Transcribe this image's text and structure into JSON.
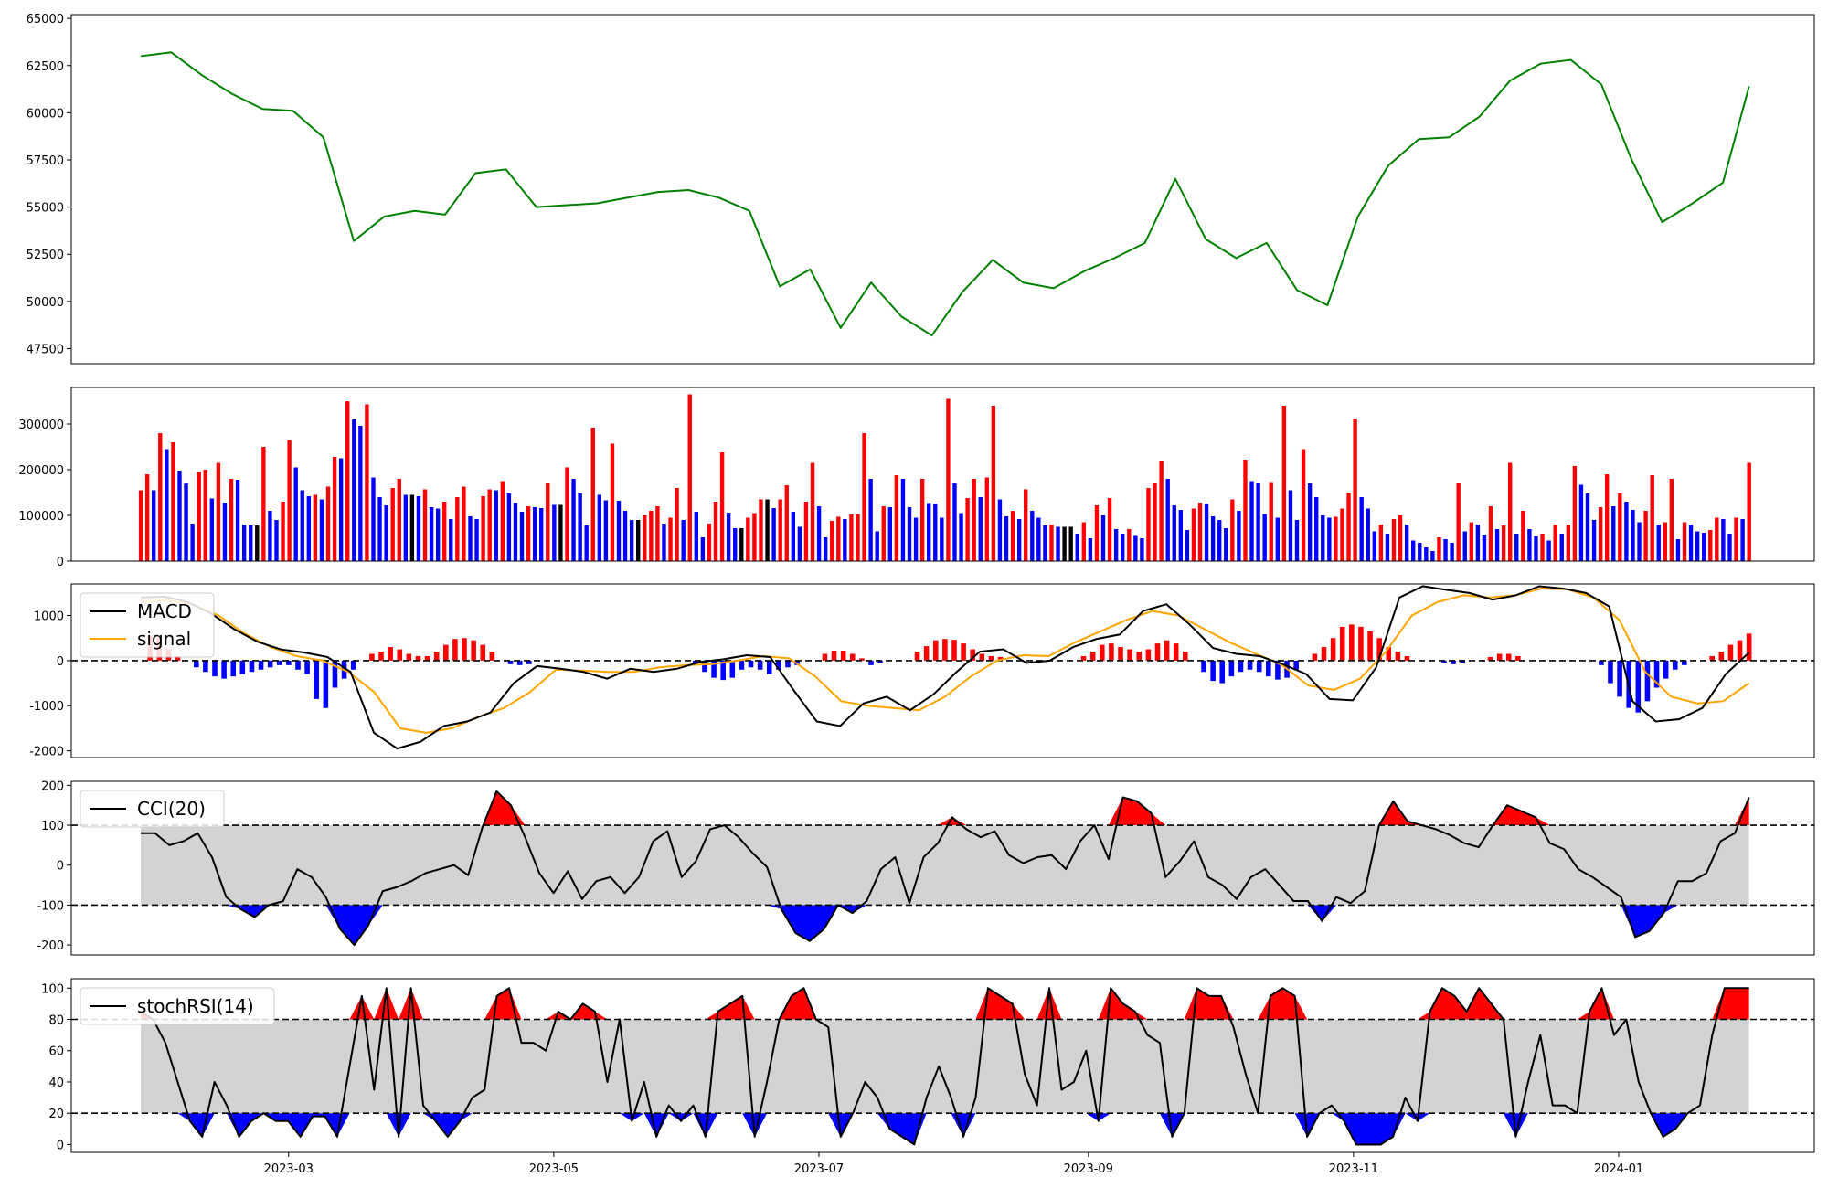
{
  "chart_data": [
    {
      "type": "line",
      "panel": "price",
      "x": [
        "2023-01-26",
        "2023-02-02",
        "2023-02-09",
        "2023-02-16",
        "2023-02-23",
        "2023-03-02",
        "2023-03-09",
        "2023-03-16",
        "2023-03-23",
        "2023-03-30",
        "2023-04-06",
        "2023-04-13",
        "2023-04-20",
        "2023-04-27",
        "2023-05-04",
        "2023-05-11",
        "2023-05-18",
        "2023-05-25",
        "2023-06-01",
        "2023-06-08",
        "2023-06-15",
        "2023-06-22",
        "2023-06-29",
        "2023-07-06",
        "2023-07-13",
        "2023-07-20",
        "2023-07-27",
        "2023-08-03",
        "2023-08-10",
        "2023-08-17",
        "2023-08-24",
        "2023-08-31",
        "2023-09-07",
        "2023-09-14",
        "2023-09-21",
        "2023-09-28",
        "2023-10-05",
        "2023-10-12",
        "2023-10-19",
        "2023-10-26",
        "2023-11-02",
        "2023-11-09",
        "2023-11-16",
        "2023-11-23",
        "2023-11-30",
        "2023-12-07",
        "2023-12-14",
        "2023-12-21",
        "2023-12-28",
        "2024-01-04",
        "2024-01-11",
        "2024-01-18",
        "2024-01-25",
        "2024-01-31"
      ],
      "series": [
        {
          "values": [
            63000,
            63200,
            62000,
            61000,
            60200,
            60100,
            58700,
            53200,
            54500,
            54800,
            54600,
            56800,
            57000,
            55000,
            55100,
            55200,
            55500,
            55800,
            55900,
            55500,
            54800,
            50800,
            51700,
            48600,
            51000,
            49200,
            48200,
            50500,
            52200,
            51000,
            50700,
            51600,
            52300,
            53100,
            56500,
            53300,
            52300,
            53100,
            50600,
            49800,
            54500,
            57200,
            58600,
            58700,
            59800,
            61700,
            62600,
            62800,
            61500,
            57500,
            54200,
            55200,
            56300,
            61400
          ]
        }
      ],
      "ylim": [
        46700,
        65200
      ],
      "yticks": [
        47500,
        50000,
        52500,
        55000,
        57500,
        60000,
        62500,
        65000
      ],
      "colors": {
        "line": "#008000"
      }
    },
    {
      "type": "bar",
      "panel": "volume",
      "values": [
        155000,
        190000,
        155000,
        280000,
        245000,
        260000,
        198000,
        170000,
        82000,
        195000,
        200000,
        137000,
        215000,
        128000,
        180000,
        178000,
        80000,
        78000,
        78000,
        250000,
        110000,
        90000,
        130000,
        265000,
        205000,
        155000,
        142000,
        145000,
        135000,
        163000,
        228000,
        225000,
        350000,
        310000,
        296000,
        343000,
        183000,
        140000,
        122000,
        160000,
        180000,
        145000,
        145000,
        142000,
        157000,
        118000,
        115000,
        130000,
        92000,
        140000,
        163000,
        98000,
        92000,
        142000,
        157000,
        155000,
        175000,
        148000,
        128000,
        108000,
        120000,
        118000,
        116000,
        172000,
        123000,
        123000,
        205000,
        180000,
        148000,
        78000,
        292000,
        145000,
        133000,
        257000,
        132000,
        110000,
        90000,
        90000,
        100000,
        110000,
        120000,
        82000,
        95000,
        160000,
        90000,
        365000,
        108000,
        52000,
        82000,
        130000,
        238000,
        106000,
        72000,
        72000,
        95000,
        105000,
        135000,
        135000,
        116000,
        135000,
        166000,
        108000,
        75000,
        130000,
        215000,
        120000,
        52000,
        88000,
        97000,
        92000,
        102000,
        103000,
        280000,
        180000,
        65000,
        120000,
        118000,
        188000,
        180000,
        118000,
        95000,
        180000,
        127000,
        125000,
        95000,
        355000,
        170000,
        105000,
        138000,
        180000,
        140000,
        183000,
        340000,
        135000,
        98000,
        110000,
        92000,
        157000,
        110000,
        95000,
        78000,
        80000,
        75000,
        75000,
        75000,
        60000,
        85000,
        50000,
        122000,
        100000,
        138000,
        70000,
        60000,
        70000,
        57000,
        50000,
        160000,
        172000,
        220000,
        180000,
        122000,
        112000,
        68000,
        115000,
        128000,
        125000,
        98000,
        90000,
        72000,
        135000,
        110000,
        222000,
        175000,
        172000,
        103000,
        173000,
        95000,
        340000,
        155000,
        90000,
        245000,
        170000,
        140000,
        100000,
        95000,
        97000,
        115000,
        150000,
        312000,
        140000,
        115000,
        65000,
        80000,
        60000,
        92000,
        100000,
        80000,
        45000,
        40000,
        30000,
        22000,
        52000,
        48000,
        40000,
        172000,
        65000,
        85000,
        80000,
        58000,
        120000,
        70000,
        78000,
        215000,
        60000,
        110000,
        70000,
        55000,
        60000,
        45000,
        80000,
        60000,
        80000,
        208000,
        167000,
        148000,
        90000,
        118000,
        190000,
        120000,
        148000,
        130000,
        112000,
        85000,
        110000,
        188000,
        80000,
        85000,
        180000,
        48000,
        85000,
        80000,
        65000,
        62000,
        68000,
        95000,
        92000,
        60000,
        95000,
        92000,
        215000
      ],
      "ylim": [
        0,
        380000
      ],
      "yticks": [
        0,
        100000,
        200000,
        300000
      ],
      "colors": {
        "up": "#ff0000",
        "down": "#0000ff",
        "flat": "#000000"
      }
    },
    {
      "type": "line",
      "panel": "macd",
      "series": [
        {
          "name": "MACD",
          "values": [
            1400,
            1420,
            1300,
            1050,
            700,
            420,
            250,
            180,
            80,
            -250,
            -1600,
            -1950,
            -1800,
            -1450,
            -1350,
            -1150,
            -500,
            -120,
            -180,
            -250,
            -400,
            -180,
            -250,
            -180,
            -30,
            30,
            120,
            80,
            -650,
            -1350,
            -1450,
            -950,
            -800,
            -1100,
            -750,
            -250,
            200,
            250,
            -50,
            0,
            300,
            480,
            580,
            1100,
            1250,
            800,
            280,
            150,
            100,
            -80,
            -300,
            -850,
            -880,
            -150,
            1400,
            1650,
            1570,
            1500,
            1350,
            1450,
            1650,
            1600,
            1500,
            1200,
            -900,
            -1350,
            -1300,
            -1050,
            -300,
            180
          ]
        },
        {
          "name": "signal",
          "values": [
            1300,
            1340,
            1250,
            1000,
            600,
            300,
            100,
            0,
            -250,
            -700,
            -1500,
            -1600,
            -1500,
            -1250,
            -1050,
            -700,
            -200,
            -220,
            -250,
            -250,
            -150,
            -100,
            -80,
            0,
            100,
            50,
            -350,
            -900,
            -1000,
            -1050,
            -1100,
            -800,
            -350,
            0,
            120,
            100,
            400,
            650,
            900,
            1100,
            1000,
            700,
            400,
            150,
            -100,
            -550,
            -650,
            -400,
            200,
            1000,
            1300,
            1450,
            1400,
            1450,
            1600,
            1580,
            1400,
            900,
            -250,
            -800,
            -950,
            -900,
            -500
          ]
        }
      ],
      "histogram": [
        0,
        550,
        500,
        250,
        100,
        0,
        -150,
        -250,
        -350,
        -400,
        -350,
        -300,
        -250,
        -200,
        -150,
        -100,
        -100,
        -200,
        -300,
        -850,
        -1050,
        -600,
        -400,
        -200,
        0,
        150,
        200,
        300,
        250,
        150,
        100,
        100,
        200,
        350,
        480,
        500,
        450,
        350,
        200,
        0,
        -80,
        -100,
        -80,
        0,
        0,
        0,
        0,
        0,
        0,
        0,
        0,
        0,
        0,
        0,
        0,
        0,
        0,
        0,
        0,
        0,
        -100,
        -250,
        -380,
        -430,
        -380,
        -200,
        -150,
        -200,
        -300,
        -200,
        -150,
        -100,
        0,
        0,
        150,
        220,
        220,
        150,
        50,
        -100,
        -50,
        0,
        0,
        0,
        200,
        320,
        450,
        480,
        460,
        380,
        250,
        150,
        100,
        80,
        0,
        0,
        0,
        0,
        0,
        0,
        0,
        0,
        100,
        200,
        350,
        380,
        300,
        250,
        200,
        250,
        380,
        450,
        380,
        200,
        0,
        -250,
        -450,
        -500,
        -350,
        -250,
        -200,
        -250,
        -350,
        -420,
        -380,
        -200,
        0,
        150,
        300,
        500,
        750,
        800,
        750,
        650,
        500,
        300,
        200,
        100,
        0,
        0,
        0,
        -50,
        -80,
        -50,
        0,
        0,
        80,
        150,
        150,
        100,
        0,
        0,
        0,
        0,
        0,
        0,
        0,
        0,
        -100,
        -500,
        -800,
        -1050,
        -1150,
        -900,
        -600,
        -400,
        -200,
        -100,
        0,
        0,
        100,
        200,
        350,
        450,
        600
      ],
      "hline": 0,
      "ylim": [
        -2150,
        1700
      ],
      "yticks": [
        -2000,
        -1000,
        0,
        1000
      ],
      "legend": "top-left",
      "colors": {
        "MACD": "#000000",
        "signal": "#ffa500",
        "hist_pos": "#ff0000",
        "hist_neg": "#0000ff"
      }
    },
    {
      "type": "area",
      "panel": "cci",
      "series": [
        {
          "name": "CCI(20)",
          "values": [
            80,
            80,
            50,
            60,
            80,
            20,
            -80,
            -110,
            -130,
            -100,
            -90,
            -10,
            -30,
            -80,
            -160,
            -200,
            -150,
            -65,
            -55,
            -40,
            -20,
            -10,
            0,
            -25,
            95,
            185,
            150,
            70,
            -20,
            -70,
            -15,
            -85,
            -40,
            -30,
            -70,
            -30,
            60,
            85,
            -30,
            10,
            90,
            100,
            70,
            30,
            -5,
            -110,
            -170,
            -190,
            -160,
            -100,
            -120,
            -90,
            -10,
            20,
            -95,
            20,
            55,
            120,
            90,
            70,
            85,
            25,
            5,
            20,
            25,
            -10,
            60,
            100,
            15,
            170,
            160,
            130,
            -30,
            10,
            60,
            -30,
            -50,
            -85,
            -30,
            -10,
            -50,
            -90,
            -90,
            -140,
            -80,
            -95,
            -65,
            100,
            160,
            110,
            100,
            90,
            75,
            55,
            45,
            100,
            150,
            135,
            120,
            55,
            40,
            -10,
            -30,
            -55,
            -80,
            -180,
            -165,
            -120,
            -40,
            -40,
            -20,
            60,
            80,
            170
          ]
        }
      ],
      "hlines": [
        100,
        -100
      ],
      "ylim": [
        -225,
        210
      ],
      "yticks": [
        -200,
        -100,
        0,
        100,
        200
      ],
      "legend": "top-left",
      "colors": {
        "line": "#000000",
        "band": "#d3d3d3",
        "above": "#ff0000",
        "below": "#0000ff"
      }
    },
    {
      "type": "area",
      "panel": "stochrsi",
      "series": [
        {
          "name": "stochRSI(14)",
          "values": [
            85,
            80,
            65,
            40,
            15,
            5,
            40,
            25,
            5,
            15,
            20,
            15,
            15,
            5,
            18,
            18,
            5,
            50,
            95,
            35,
            100,
            5,
            100,
            25,
            15,
            5,
            15,
            30,
            35,
            95,
            100,
            65,
            65,
            60,
            85,
            80,
            90,
            85,
            40,
            80,
            15,
            40,
            5,
            25,
            15,
            25,
            5,
            85,
            90,
            95,
            5,
            40,
            80,
            95,
            100,
            80,
            75,
            5,
            20,
            40,
            30,
            10,
            5,
            0,
            30,
            50,
            30,
            5,
            30,
            100,
            95,
            90,
            45,
            25,
            100,
            35,
            40,
            60,
            15,
            100,
            90,
            85,
            70,
            65,
            5,
            20,
            100,
            95,
            95,
            75,
            45,
            20,
            95,
            100,
            95,
            5,
            20,
            25,
            15,
            0,
            0,
            0,
            5,
            30,
            15,
            85,
            100,
            95,
            85,
            100,
            90,
            80,
            5,
            40,
            70,
            25,
            25,
            20,
            85,
            100,
            70,
            80,
            40,
            20,
            5,
            10,
            20,
            25,
            70,
            100,
            100,
            100
          ]
        }
      ],
      "hlines": [
        80,
        20
      ],
      "ylim": [
        -5,
        106
      ],
      "yticks": [
        0,
        20,
        40,
        60,
        80,
        100
      ],
      "legend": "top-left",
      "colors": {
        "line": "#000000",
        "band": "#d3d3d3",
        "above": "#ff0000",
        "below": "#0000ff"
      }
    }
  ],
  "x_axis": {
    "start": "2023-01-10",
    "end": "2024-02-15",
    "data_start": "2023-01-26",
    "data_end": "2024-01-31",
    "ticks": [
      "2023-03",
      "2023-05",
      "2023-07",
      "2023-09",
      "2023-11",
      "2024-01"
    ]
  }
}
